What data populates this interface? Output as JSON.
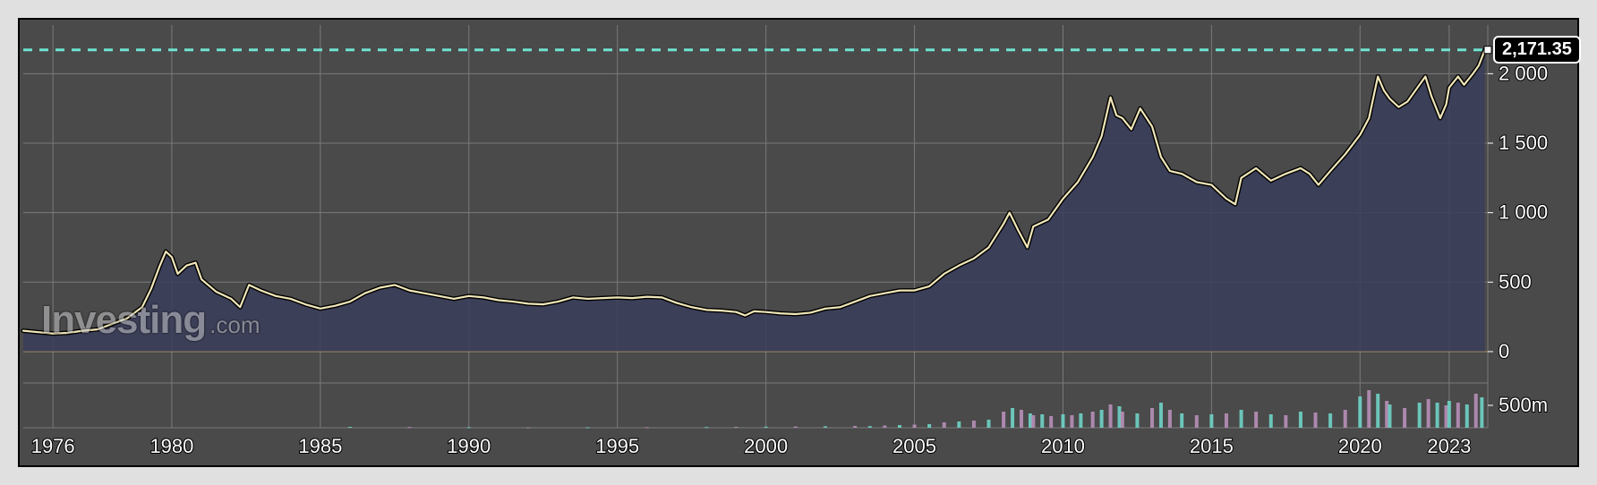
{
  "chart": {
    "type": "area",
    "background_color": "#4a4a4a",
    "grid_color": "#7a7a7a",
    "grid_dash": "none",
    "current_line_color": "#6fe3d1",
    "current_line_dash": "6,6",
    "line_color": "#f0e6b8",
    "line_outline_color": "#000000",
    "area_fill": "#3a3d5a",
    "label_text_fill": "#ffffff",
    "label_text_stroke": "#000000",
    "label_fontsize": 22,
    "y_axis": {
      "ticks": [
        0,
        500,
        1000,
        1500,
        2000
      ],
      "tick_labels": [
        "0",
        "500",
        "1 000",
        "1 500",
        "2 000"
      ],
      "min": -200,
      "max": 2350
    },
    "x_axis": {
      "min_year": 1975,
      "max_year": 2024.3,
      "ticks": [
        1976,
        1980,
        1985,
        1990,
        1995,
        2000,
        2005,
        2010,
        2015,
        2020,
        2023
      ],
      "tick_labels": [
        "1976",
        "1980",
        "1985",
        "1990",
        "1995",
        "2000",
        "2005",
        "2010",
        "2015",
        "2020",
        "2023"
      ]
    },
    "current_value": 2171.35,
    "current_value_label": "2,171.35",
    "series": [
      [
        1975.0,
        150
      ],
      [
        1975.5,
        140
      ],
      [
        1976.0,
        130
      ],
      [
        1976.5,
        135
      ],
      [
        1977.0,
        150
      ],
      [
        1977.5,
        160
      ],
      [
        1978.0,
        200
      ],
      [
        1978.5,
        240
      ],
      [
        1979.0,
        320
      ],
      [
        1979.3,
        450
      ],
      [
        1979.6,
        620
      ],
      [
        1979.8,
        720
      ],
      [
        1980.0,
        680
      ],
      [
        1980.2,
        560
      ],
      [
        1980.5,
        620
      ],
      [
        1980.8,
        640
      ],
      [
        1981.0,
        520
      ],
      [
        1981.5,
        430
      ],
      [
        1982.0,
        380
      ],
      [
        1982.3,
        320
      ],
      [
        1982.6,
        480
      ],
      [
        1983.0,
        440
      ],
      [
        1983.5,
        400
      ],
      [
        1984.0,
        380
      ],
      [
        1984.5,
        340
      ],
      [
        1985.0,
        310
      ],
      [
        1985.5,
        330
      ],
      [
        1986.0,
        360
      ],
      [
        1986.5,
        420
      ],
      [
        1987.0,
        460
      ],
      [
        1987.5,
        480
      ],
      [
        1988.0,
        440
      ],
      [
        1988.5,
        420
      ],
      [
        1989.0,
        400
      ],
      [
        1989.5,
        380
      ],
      [
        1990.0,
        400
      ],
      [
        1990.5,
        390
      ],
      [
        1991.0,
        370
      ],
      [
        1991.5,
        360
      ],
      [
        1992.0,
        345
      ],
      [
        1992.5,
        340
      ],
      [
        1993.0,
        360
      ],
      [
        1993.5,
        390
      ],
      [
        1994.0,
        380
      ],
      [
        1994.5,
        385
      ],
      [
        1995.0,
        390
      ],
      [
        1995.5,
        385
      ],
      [
        1996.0,
        395
      ],
      [
        1996.5,
        390
      ],
      [
        1997.0,
        350
      ],
      [
        1997.5,
        320
      ],
      [
        1998.0,
        300
      ],
      [
        1998.5,
        295
      ],
      [
        1999.0,
        285
      ],
      [
        1999.3,
        260
      ],
      [
        1999.6,
        290
      ],
      [
        2000.0,
        285
      ],
      [
        2000.5,
        275
      ],
      [
        2001.0,
        270
      ],
      [
        2001.5,
        280
      ],
      [
        2002.0,
        310
      ],
      [
        2002.5,
        320
      ],
      [
        2003.0,
        360
      ],
      [
        2003.5,
        400
      ],
      [
        2004.0,
        420
      ],
      [
        2004.5,
        440
      ],
      [
        2005.0,
        440
      ],
      [
        2005.5,
        470
      ],
      [
        2006.0,
        560
      ],
      [
        2006.5,
        620
      ],
      [
        2007.0,
        670
      ],
      [
        2007.5,
        750
      ],
      [
        2008.0,
        920
      ],
      [
        2008.2,
        1000
      ],
      [
        2008.5,
        870
      ],
      [
        2008.8,
        750
      ],
      [
        2009.0,
        900
      ],
      [
        2009.5,
        950
      ],
      [
        2010.0,
        1100
      ],
      [
        2010.5,
        1220
      ],
      [
        2011.0,
        1400
      ],
      [
        2011.3,
        1550
      ],
      [
        2011.6,
        1830
      ],
      [
        2011.8,
        1700
      ],
      [
        2012.0,
        1680
      ],
      [
        2012.3,
        1600
      ],
      [
        2012.6,
        1750
      ],
      [
        2013.0,
        1620
      ],
      [
        2013.3,
        1400
      ],
      [
        2013.6,
        1300
      ],
      [
        2014.0,
        1280
      ],
      [
        2014.5,
        1220
      ],
      [
        2015.0,
        1200
      ],
      [
        2015.5,
        1100
      ],
      [
        2015.8,
        1060
      ],
      [
        2016.0,
        1250
      ],
      [
        2016.5,
        1320
      ],
      [
        2017.0,
        1230
      ],
      [
        2017.5,
        1280
      ],
      [
        2018.0,
        1320
      ],
      [
        2018.3,
        1280
      ],
      [
        2018.6,
        1200
      ],
      [
        2019.0,
        1300
      ],
      [
        2019.5,
        1420
      ],
      [
        2020.0,
        1560
      ],
      [
        2020.3,
        1680
      ],
      [
        2020.6,
        1980
      ],
      [
        2020.8,
        1880
      ],
      [
        2021.0,
        1820
      ],
      [
        2021.3,
        1760
      ],
      [
        2021.6,
        1800
      ],
      [
        2022.0,
        1920
      ],
      [
        2022.2,
        1980
      ],
      [
        2022.4,
        1840
      ],
      [
        2022.7,
        1680
      ],
      [
        2022.9,
        1780
      ],
      [
        2023.0,
        1900
      ],
      [
        2023.3,
        1980
      ],
      [
        2023.5,
        1920
      ],
      [
        2023.8,
        2000
      ],
      [
        2024.0,
        2060
      ],
      [
        2024.2,
        2171.35
      ]
    ],
    "volume": {
      "max": 500,
      "label": "500m",
      "color_a": "#6fd3c7",
      "color_b": "#b88fb8",
      "bars": [
        [
          1986,
          10
        ],
        [
          1988,
          8
        ],
        [
          1990,
          6
        ],
        [
          1992,
          5
        ],
        [
          1994,
          5
        ],
        [
          1996,
          6
        ],
        [
          1998,
          8
        ],
        [
          1999,
          10
        ],
        [
          2000,
          12
        ],
        [
          2001,
          14
        ],
        [
          2002,
          16
        ],
        [
          2003,
          20
        ],
        [
          2003.5,
          18
        ],
        [
          2004,
          25
        ],
        [
          2004.5,
          30
        ],
        [
          2005,
          35
        ],
        [
          2005.5,
          40
        ],
        [
          2006,
          60
        ],
        [
          2006.5,
          70
        ],
        [
          2007,
          80
        ],
        [
          2007.5,
          90
        ],
        [
          2008,
          180
        ],
        [
          2008.3,
          220
        ],
        [
          2008.6,
          200
        ],
        [
          2008.9,
          160
        ],
        [
          2009,
          140
        ],
        [
          2009.3,
          150
        ],
        [
          2009.6,
          130
        ],
        [
          2010,
          150
        ],
        [
          2010.3,
          140
        ],
        [
          2010.6,
          160
        ],
        [
          2011,
          180
        ],
        [
          2011.3,
          200
        ],
        [
          2011.6,
          260
        ],
        [
          2011.9,
          240
        ],
        [
          2012,
          180
        ],
        [
          2012.5,
          160
        ],
        [
          2013,
          220
        ],
        [
          2013.3,
          280
        ],
        [
          2013.6,
          200
        ],
        [
          2014,
          160
        ],
        [
          2014.5,
          140
        ],
        [
          2015,
          150
        ],
        [
          2015.5,
          160
        ],
        [
          2016,
          200
        ],
        [
          2016.5,
          180
        ],
        [
          2017,
          150
        ],
        [
          2017.5,
          140
        ],
        [
          2018,
          180
        ],
        [
          2018.5,
          170
        ],
        [
          2019,
          160
        ],
        [
          2019.5,
          200
        ],
        [
          2020,
          350
        ],
        [
          2020.3,
          420
        ],
        [
          2020.6,
          380
        ],
        [
          2020.9,
          300
        ],
        [
          2021,
          260
        ],
        [
          2021.5,
          220
        ],
        [
          2022,
          280
        ],
        [
          2022.3,
          320
        ],
        [
          2022.6,
          280
        ],
        [
          2022.9,
          250
        ],
        [
          2023,
          300
        ],
        [
          2023.3,
          280
        ],
        [
          2023.6,
          260
        ],
        [
          2023.9,
          380
        ],
        [
          2024.1,
          340
        ]
      ]
    }
  },
  "watermark": {
    "brand": "Investing",
    "tld": ".com"
  },
  "badge": {
    "bg": "#000000",
    "border": "#ffffff",
    "text_color": "#ffffff"
  }
}
